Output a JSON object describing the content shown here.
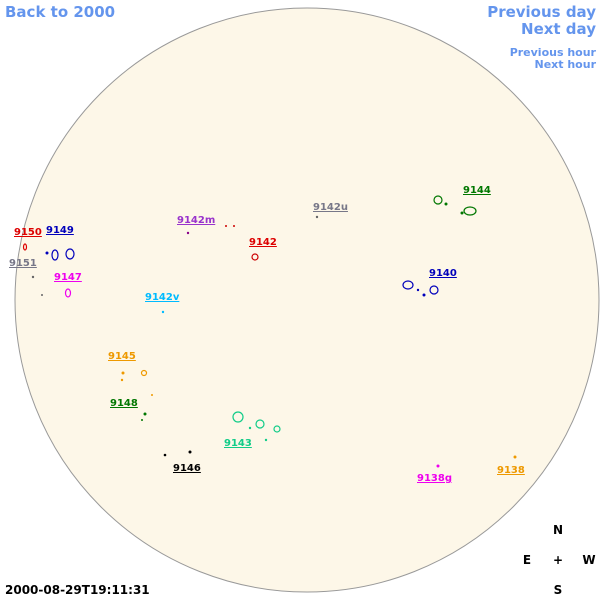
{
  "navigation": {
    "back": "Back to 2000",
    "previous_day": "Previous day",
    "next_day": "Next day",
    "previous_hour": "Previous hour",
    "next_hour": "Next hour"
  },
  "regions": [
    {
      "label": "9150"
    },
    {
      "label": "9149"
    },
    {
      "label": "9151"
    },
    {
      "label": "9147"
    },
    {
      "label": "9142m"
    },
    {
      "label": "9142u"
    },
    {
      "label": "9142"
    },
    {
      "label": "9144"
    },
    {
      "label": "9140"
    },
    {
      "label": "9142v"
    },
    {
      "label": "9145"
    },
    {
      "label": "9148"
    },
    {
      "label": "9143"
    },
    {
      "label": "9146"
    },
    {
      "label": "9138g"
    },
    {
      "label": "9138"
    }
  ],
  "timestamp": "2000-08-29T19:11:31",
  "compass": {
    "north": "N",
    "east": "E",
    "center": "+",
    "west": "W",
    "south": "S"
  }
}
